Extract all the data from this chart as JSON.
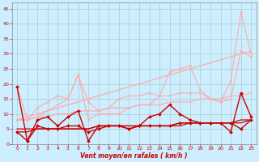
{
  "x": [
    0,
    1,
    2,
    3,
    4,
    5,
    6,
    7,
    8,
    9,
    10,
    11,
    12,
    13,
    14,
    15,
    16,
    17,
    18,
    19,
    20,
    21,
    22,
    23
  ],
  "series": [
    {
      "y": [
        8,
        9,
        10,
        11,
        12,
        13,
        14,
        15,
        16,
        17,
        18,
        19,
        20,
        21,
        22,
        23,
        24,
        25,
        26,
        27,
        28,
        29,
        30,
        31
      ],
      "color": "#ffaaaa",
      "lw": 0.9,
      "marker": null,
      "linestyle": "-"
    },
    {
      "y": [
        8,
        8,
        9,
        9,
        10,
        10,
        11,
        11,
        11,
        12,
        12,
        12,
        13,
        13,
        13,
        14,
        14,
        14,
        15,
        15,
        15,
        16,
        16,
        17
      ],
      "color": "#ffaaaa",
      "lw": 0.9,
      "marker": null,
      "linestyle": "-"
    },
    {
      "y": [
        19,
        8,
        12,
        14,
        16,
        15,
        23,
        14,
        11,
        12,
        15,
        16,
        16,
        17,
        16,
        24,
        25,
        26,
        18,
        15,
        14,
        21,
        44,
        30
      ],
      "color": "#ffaaaa",
      "lw": 0.8,
      "marker": "o",
      "ms": 1.5,
      "linestyle": "-"
    },
    {
      "y": [
        8,
        8,
        9,
        11,
        13,
        15,
        23,
        8,
        10,
        10,
        10,
        12,
        13,
        13,
        16,
        16,
        17,
        17,
        17,
        15,
        14,
        15,
        31,
        29
      ],
      "color": "#ffaaaa",
      "lw": 0.8,
      "marker": "o",
      "ms": 1.5,
      "linestyle": "-"
    },
    {
      "y": [
        4,
        4,
        5,
        5,
        5,
        5,
        5,
        5,
        6,
        6,
        6,
        6,
        6,
        6,
        6,
        6,
        7,
        7,
        7,
        7,
        7,
        7,
        8,
        8
      ],
      "color": "#cc0000",
      "lw": 0.9,
      "marker": null,
      "linestyle": "-"
    },
    {
      "y": [
        5,
        5,
        5,
        5,
        5,
        5,
        5,
        5,
        6,
        6,
        6,
        6,
        6,
        6,
        6,
        6,
        6,
        7,
        7,
        7,
        7,
        7,
        7,
        8
      ],
      "color": "#cc0000",
      "lw": 0.9,
      "marker": null,
      "linestyle": "-"
    },
    {
      "y": [
        4,
        1,
        6,
        5,
        5,
        6,
        6,
        4,
        5,
        6,
        6,
        5,
        6,
        6,
        6,
        6,
        7,
        7,
        7,
        7,
        7,
        7,
        5,
        8
      ],
      "color": "#cc0000",
      "lw": 1.0,
      "marker": "D",
      "ms": 2.0,
      "linestyle": "-"
    },
    {
      "y": [
        19,
        1,
        8,
        9,
        6,
        9,
        11,
        1,
        6,
        6,
        6,
        5,
        6,
        9,
        10,
        13,
        10,
        8,
        7,
        7,
        7,
        4,
        17,
        9
      ],
      "color": "#cc0000",
      "lw": 1.0,
      "marker": "D",
      "ms": 2.0,
      "linestyle": "-"
    }
  ],
  "xlabel": "Vent moyen/en rafales ( km/h )",
  "xlim": [
    -0.5,
    23.5
  ],
  "ylim": [
    0,
    47
  ],
  "yticks": [
    0,
    5,
    10,
    15,
    20,
    25,
    30,
    35,
    40,
    45
  ],
  "xticks": [
    0,
    1,
    2,
    3,
    4,
    5,
    6,
    7,
    8,
    9,
    10,
    11,
    12,
    13,
    14,
    15,
    16,
    17,
    18,
    19,
    20,
    21,
    22,
    23
  ],
  "bg_color": "#cceeff",
  "grid_color": "#aacccc",
  "tick_color": "#cc0000",
  "xlabel_color": "#cc0000"
}
